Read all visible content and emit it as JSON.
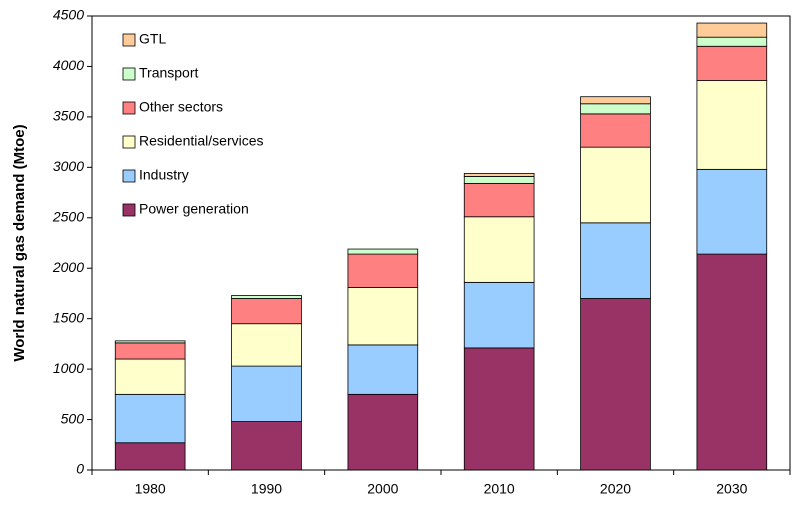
{
  "chart_data": {
    "type": "stacked_bar",
    "y_label": "World natural gas demand (Mtoe)",
    "categories": [
      "1980",
      "1990",
      "2000",
      "2010",
      "2020",
      "2030"
    ],
    "series": [
      {
        "name": "Power generation",
        "color": "#993366",
        "values": [
          270,
          480,
          750,
          1210,
          1700,
          2140
        ]
      },
      {
        "name": "Industry",
        "color": "#99ccff",
        "values": [
          480,
          550,
          490,
          650,
          750,
          840
        ]
      },
      {
        "name": "Residential/services",
        "color": "#ffffcc",
        "values": [
          350,
          420,
          570,
          650,
          750,
          880
        ]
      },
      {
        "name": "Other sectors",
        "color": "#ff8080",
        "values": [
          160,
          250,
          330,
          330,
          330,
          340
        ]
      },
      {
        "name": "Transport",
        "color": "#ccffcc",
        "values": [
          20,
          30,
          50,
          70,
          100,
          90
        ]
      },
      {
        "name": "GTL",
        "color": "#ffcc99",
        "values": [
          0,
          0,
          0,
          30,
          70,
          140
        ]
      }
    ],
    "ylim": [
      0,
      4500
    ],
    "yticks": [
      0,
      500,
      1000,
      1500,
      2000,
      2500,
      3000,
      3500,
      4000,
      4500
    ],
    "legend": "upper left"
  }
}
